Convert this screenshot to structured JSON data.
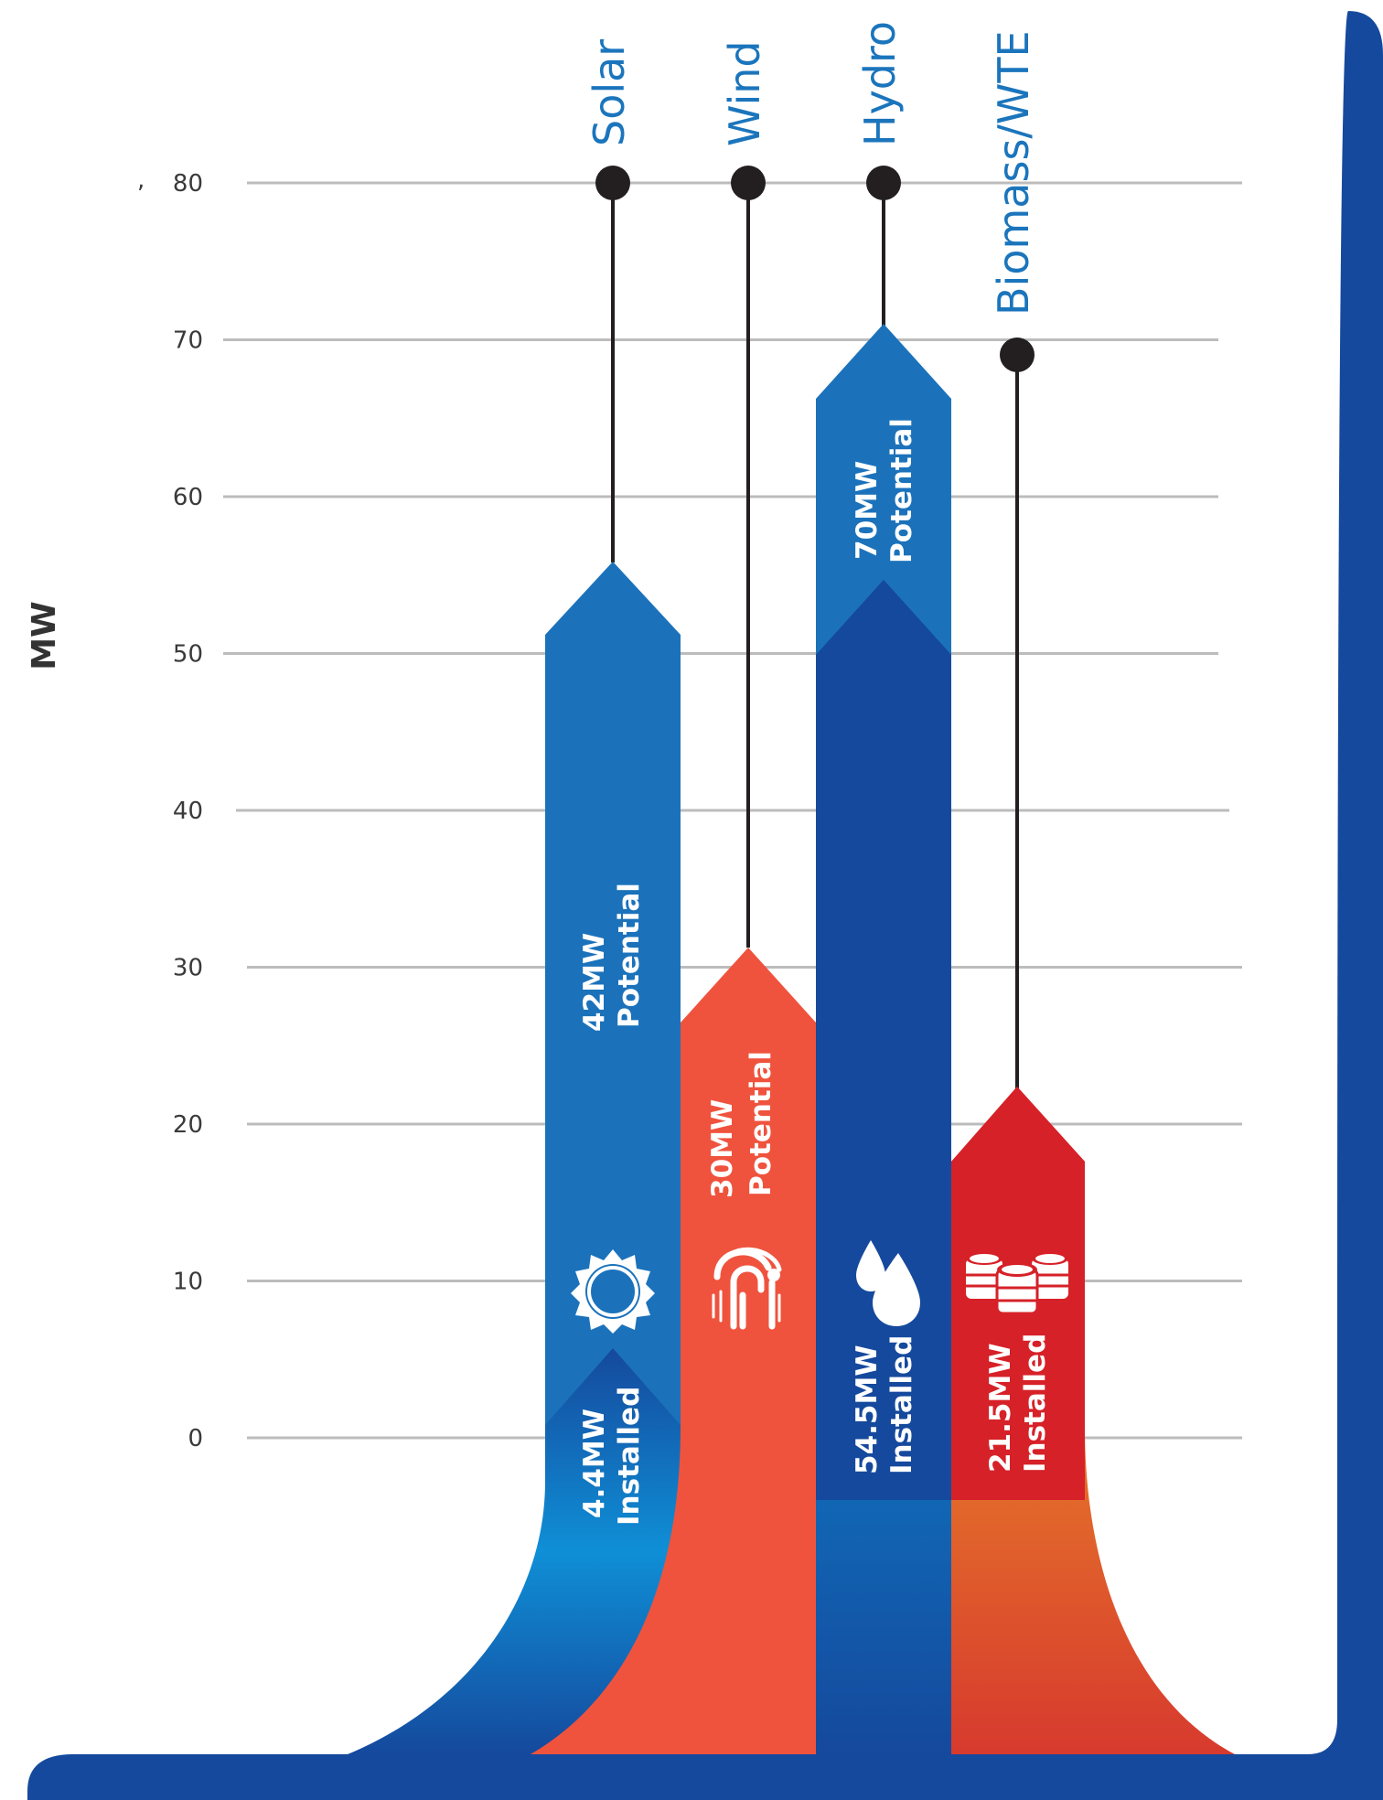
{
  "chart_data": {
    "type": "bar",
    "title": "",
    "xlabel": "",
    "ylabel": "MW",
    "ylim": [
      0,
      80
    ],
    "yticks": [
      0,
      10,
      20,
      30,
      40,
      50,
      60,
      70,
      80
    ],
    "stray_mark": ",",
    "categories": [
      "Solar",
      "Wind",
      "Hydro",
      "Biomass/WTE"
    ],
    "series": [
      {
        "name": "Potential",
        "values": [
          42,
          30,
          70,
          null
        ]
      },
      {
        "name": "Installed",
        "values": [
          4.4,
          null,
          54.5,
          21.5
        ]
      }
    ],
    "bars": [
      {
        "category": "Solar",
        "icon": "sun-icon",
        "color": "#1b72bb",
        "labels": [
          {
            "value": "42MW",
            "kind": "Potential"
          },
          {
            "value": "4.4MW",
            "kind": "Installed"
          }
        ]
      },
      {
        "category": "Wind",
        "icon": "wind-turbine-icon",
        "color": "#ef533d",
        "labels": [
          {
            "value": "30MW",
            "kind": "Potential"
          }
        ]
      },
      {
        "category": "Hydro",
        "icon": "water-drop-icon",
        "color": "#15499d",
        "labels": [
          {
            "value": "70MW",
            "kind": "Potential"
          },
          {
            "value": "54.5MW",
            "kind": "Installed"
          }
        ]
      },
      {
        "category": "Biomass/WTE",
        "icon": "barrels-icon",
        "color": "#d62128",
        "labels": [
          {
            "value": "21.5MW",
            "kind": "Installed"
          }
        ]
      }
    ],
    "colors": {
      "solar": "#1b72bb",
      "wind": "#ef533d",
      "hydro_top": "#1b72bb",
      "hydro_main": "#15499d",
      "biomass": "#d62128",
      "frame": "#15499d",
      "grid": "#bcbcbc",
      "category_text": "#1b75bc"
    }
  }
}
